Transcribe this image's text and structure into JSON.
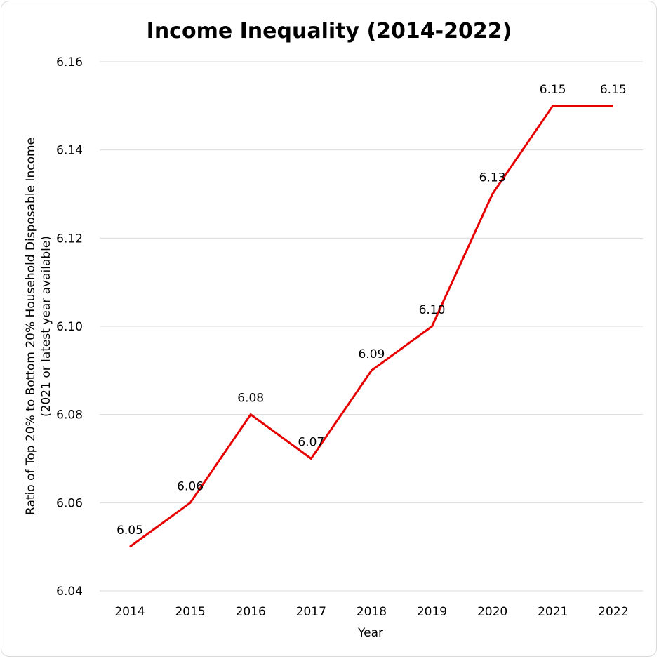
{
  "chart_data": {
    "type": "line",
    "title": "Income Inequality (2014-2022)",
    "xlabel": "Year",
    "ylabel_line1": "Ratio of Top 20% to Bottom 20% Household Disposable Income",
    "ylabel_line2": "(2021 or latest year available)",
    "categories": [
      "2014",
      "2015",
      "2016",
      "2017",
      "2018",
      "2019",
      "2020",
      "2021",
      "2022"
    ],
    "series": [
      {
        "name": "Income Ratio",
        "color": "#e60000",
        "values": [
          6.05,
          6.06,
          6.08,
          6.07,
          6.09,
          6.1,
          6.13,
          6.15,
          6.15
        ],
        "labels": [
          "6.05",
          "6.06",
          "6.08",
          "6.07",
          "6.09",
          "6.10",
          "6.13",
          "6.15",
          "6.15"
        ]
      }
    ],
    "ylim": [
      6.04,
      6.16
    ],
    "yticks": [
      6.04,
      6.06,
      6.08,
      6.1,
      6.12,
      6.14,
      6.16
    ],
    "ytick_labels": [
      "6.04",
      "6.06",
      "6.08",
      "6.10",
      "6.12",
      "6.14",
      "6.16"
    ],
    "grid": true,
    "gridColor": "#d9d9d9"
  }
}
